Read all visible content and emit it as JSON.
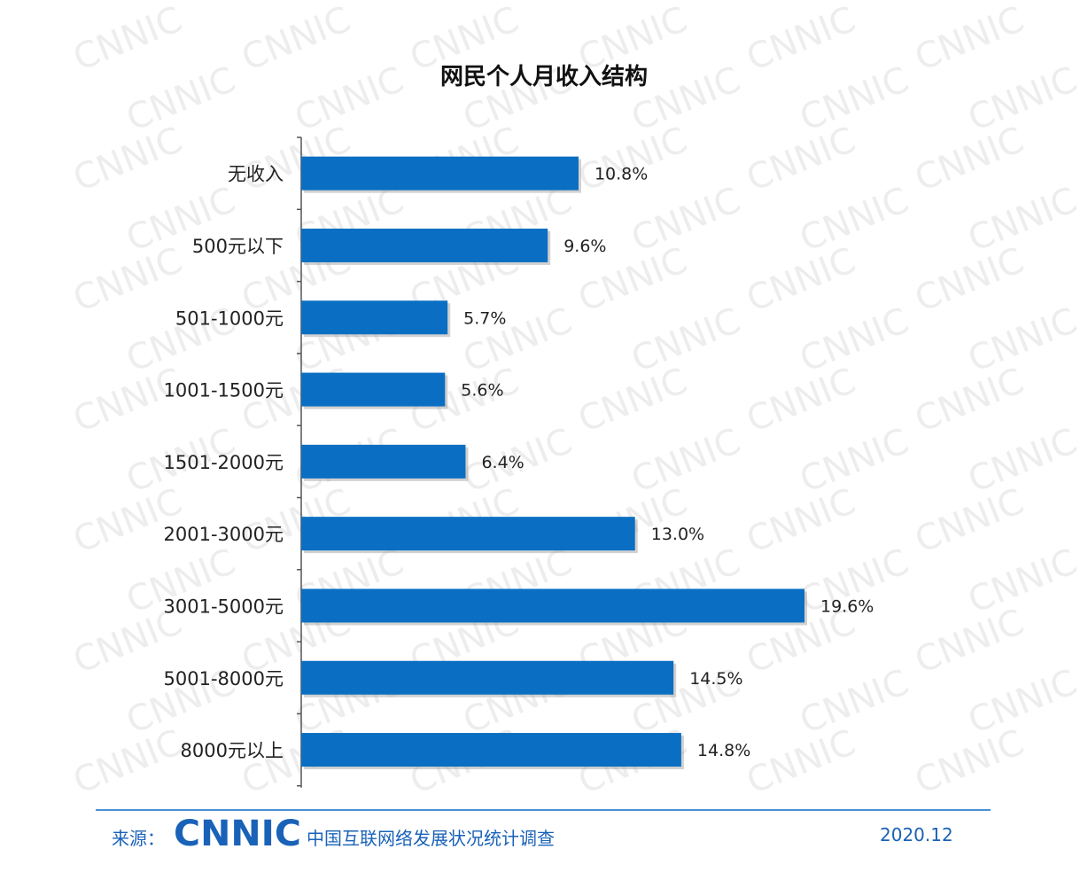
{
  "colors": {
    "bar": "#0a6fc2",
    "footer": "#1a62b8",
    "watermark": "#e6e6e6"
  },
  "watermark_text": "CNNIC",
  "footer": {
    "source_label": "来源：",
    "logo_text": "CNNIC",
    "org_name": "中国互联网络发展状况统计调查",
    "date": "2020.12"
  },
  "chart_data": {
    "type": "bar",
    "orientation": "horizontal",
    "title": "网民个人月收入结构",
    "categories": [
      "无收入",
      "500元以下",
      "501-1000元",
      "1001-1500元",
      "1501-2000元",
      "2001-3000元",
      "3001-5000元",
      "5001-8000元",
      "8000元以上"
    ],
    "values": [
      10.8,
      9.6,
      5.7,
      5.6,
      6.4,
      13.0,
      19.6,
      14.5,
      14.8
    ],
    "value_labels": [
      "10.8%",
      "9.6%",
      "5.7%",
      "5.6%",
      "6.4%",
      "13.0%",
      "19.6%",
      "14.5%",
      "14.8%"
    ],
    "unit": "%",
    "xlim": [
      0,
      19.6
    ],
    "grid": false,
    "legend": "none"
  }
}
